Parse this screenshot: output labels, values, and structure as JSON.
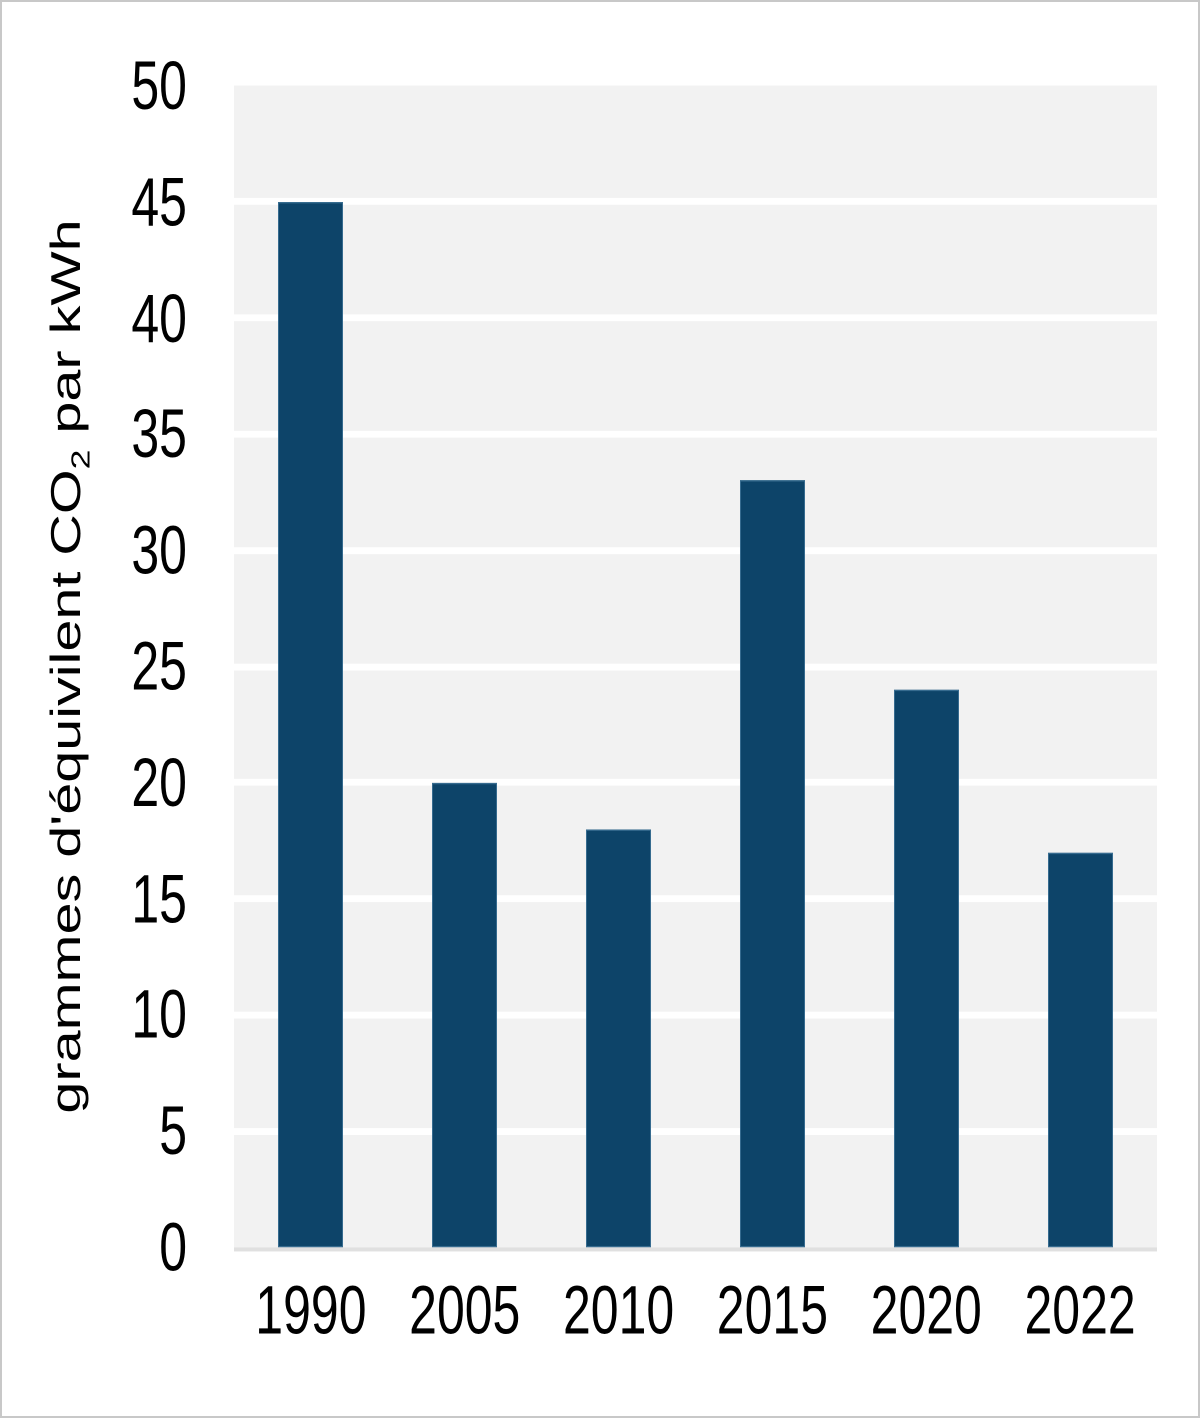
{
  "chart_data": {
    "type": "bar",
    "categories": [
      "1990",
      "2005",
      "2010",
      "2015",
      "2020",
      "2022"
    ],
    "values": [
      45,
      20,
      18,
      33,
      24,
      17
    ],
    "title": "",
    "xlabel": "",
    "ylabel": "grammes d'équivilent CO₂ par kWh",
    "ylabel_parts": {
      "pre": "grammes d'équivilent CO",
      "sub": "2",
      "post": " par kWh"
    },
    "ylim": [
      0,
      50
    ],
    "yticks": [
      0,
      5,
      10,
      15,
      20,
      25,
      30,
      35,
      40,
      45,
      50
    ],
    "grid": "horizontal white gridlines on light gray plot background",
    "legend": "none",
    "bar_color": "#0d4469"
  },
  "colors": {
    "bar": "#0d4469",
    "bar_outline": "rgba(90,140,175,0.55)",
    "plot_background": "#f2f2f2",
    "gridline": "#ffffff",
    "axis_line": "#e0e0e0",
    "frame_border": "#c8c8c8",
    "text": "#000000",
    "page_background": "#ffffff"
  }
}
